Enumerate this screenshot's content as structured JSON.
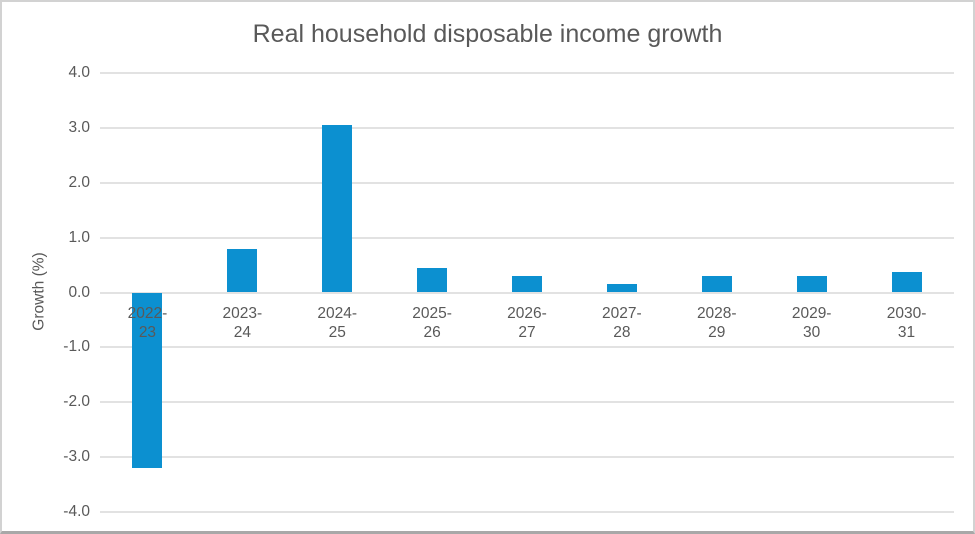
{
  "chart_data": {
    "type": "bar",
    "title": "Real household disposable income growth",
    "xlabel": "",
    "ylabel": "Growth (%)",
    "categories": [
      "2022-23",
      "2023-24",
      "2024-25",
      "2025-26",
      "2026-27",
      "2027-28",
      "2028-29",
      "2029-30",
      "2030-31"
    ],
    "values": [
      -3.2,
      0.8,
      3.05,
      0.45,
      0.3,
      0.15,
      0.3,
      0.3,
      0.38
    ],
    "ylim": [
      -4.0,
      4.0
    ],
    "ytick_step": 1.0,
    "ytick_labels": [
      "4.0",
      "3.0",
      "2.0",
      "1.0",
      "0.0",
      "-1.0",
      "-2.0",
      "-3.0",
      "-4.0"
    ],
    "grid": true,
    "legend": false
  },
  "colors": {
    "bar": "#0C90D0",
    "gridline": "#E2E2E2",
    "axis_text": "#595959",
    "title_text": "#595959",
    "background": "#FFFFFF",
    "border": "#D2D2D2",
    "border_bottom": "#A8A8A8"
  }
}
